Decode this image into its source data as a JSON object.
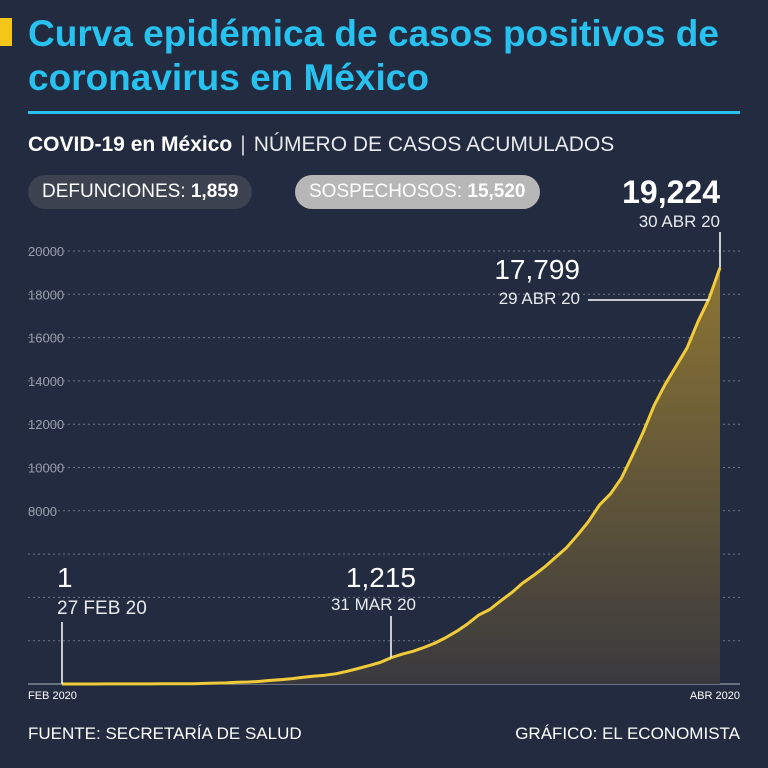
{
  "header": {
    "title": "Curva epidémica de casos positivos de coronavirus en México",
    "subtitle_bold": "COVID-19 en México",
    "subtitle_sep": "|",
    "subtitle_light": "NÚMERO DE CASOS ACUMULADOS"
  },
  "stats": {
    "deaths_label": "DEFUNCIONES:",
    "deaths_value": "1,859",
    "suspects_label": "SOSPECHOSOS:",
    "suspects_value": "15,520"
  },
  "chart_data": {
    "type": "area",
    "x_start_date": "2020-02-27",
    "y_ticks": [
      8000,
      10000,
      12000,
      14000,
      16000,
      18000,
      20000
    ],
    "ylim": [
      0,
      20000
    ],
    "x_labels": [
      "FEB 2020",
      "ABR 2020"
    ],
    "grid": true,
    "series": [
      {
        "values": [
          1,
          1,
          1,
          2,
          5,
          5,
          5,
          5,
          6,
          7,
          7,
          11,
          12,
          26,
          41,
          53,
          82,
          93,
          118,
          164,
          203,
          251,
          316,
          367,
          405,
          475,
          585,
          717,
          848,
          993,
          1215,
          1378,
          1510,
          1688,
          1890,
          2143,
          2439,
          2785,
          3181,
          3441,
          3844,
          4219,
          4661,
          5014,
          5399,
          5847,
          6297,
          6875,
          7497,
          8261,
          8772,
          9501,
          10544,
          11633,
          12872,
          13842,
          14677,
          15529,
          16752,
          17799,
          19224
        ],
        "color": "#f1cb39"
      }
    ],
    "annotations": [
      {
        "index": 0,
        "value": "1",
        "date": "27 FEB 20"
      },
      {
        "index": 30,
        "value": "1,215",
        "date": "31 MAR 20"
      },
      {
        "index": 59,
        "value": "17,799",
        "date": "29 ABR 20"
      },
      {
        "index": 60,
        "value": "19,224",
        "date": "30 ABR 20"
      }
    ]
  },
  "footer": {
    "source": "FUENTE: SECRETARÍA DE SALUD",
    "credit": "GRÁFICO: EL ECONOMISTA"
  },
  "colors": {
    "background": "#222b3f",
    "title": "#27c2f0",
    "accent": "#f5c517",
    "line": "#f1cb39"
  }
}
